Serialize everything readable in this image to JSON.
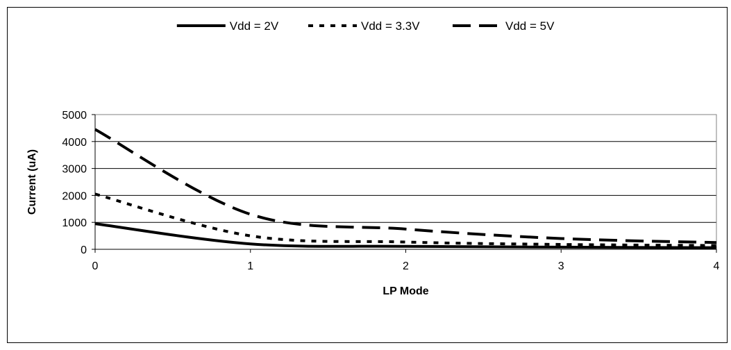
{
  "chart_data": {
    "type": "line",
    "title": "",
    "xlabel": "LP Mode",
    "ylabel": "Current (uA)",
    "xlim": [
      0,
      4
    ],
    "ylim": [
      0,
      5000
    ],
    "x_ticks": [
      "0",
      "1",
      "2",
      "3",
      "4"
    ],
    "y_ticks": [
      "0",
      "1000",
      "2000",
      "3000",
      "4000",
      "5000"
    ],
    "grid": true,
    "legend_position": "top-center",
    "x": [
      0,
      1,
      2,
      3,
      4
    ],
    "series": [
      {
        "name": "Vdd = 2V",
        "values": [
          950,
          200,
          110,
          80,
          60
        ],
        "line_style": "solid",
        "color": "#000000"
      },
      {
        "name": "Vdd = 3.3V",
        "values": [
          2050,
          500,
          270,
          180,
          140
        ],
        "line_style": "dotted",
        "color": "#000000"
      },
      {
        "name": "Vdd = 5V",
        "values": [
          4450,
          1300,
          750,
          400,
          250
        ],
        "line_style": "dashed",
        "color": "#000000"
      }
    ]
  }
}
